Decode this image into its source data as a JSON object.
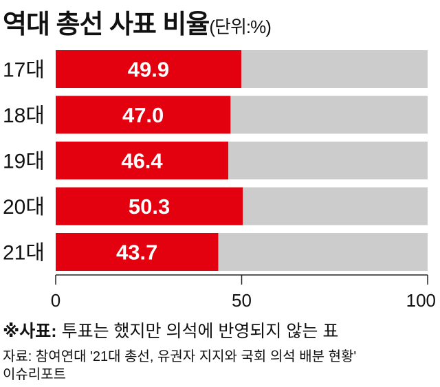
{
  "chart_data": {
    "type": "bar",
    "orientation": "horizontal",
    "title": "역대 총선 사표 비율",
    "unit_label": "(단위:%)",
    "categories": [
      "17대",
      "18대",
      "19대",
      "20대",
      "21대"
    ],
    "values": [
      49.9,
      47.0,
      46.4,
      50.3,
      43.7
    ],
    "value_labels": [
      "49.9",
      "47.0",
      "46.4",
      "50.3",
      "43.7"
    ],
    "xlim": [
      0,
      100
    ],
    "xticks": [
      0,
      50,
      100
    ],
    "xtick_labels": [
      "0",
      "50",
      "100"
    ],
    "colors": {
      "bar": "#e3000f",
      "track": "#cccccc"
    }
  },
  "note": {
    "label": "※사표:",
    "text": " 투표는 했지만 의석에 반영되지 않는 표"
  },
  "source": {
    "line1": "자료: 참여연대 '21대 총선, 유권자 지지와 국회 의석 배분 현황'",
    "line2": "이슈리포트"
  }
}
